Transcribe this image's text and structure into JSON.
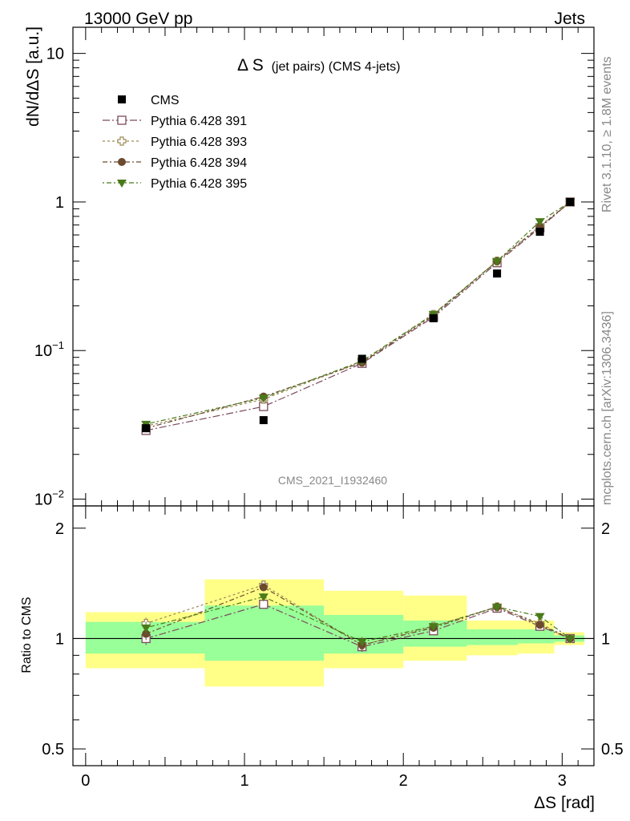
{
  "header": {
    "left": "13000 GeV pp",
    "right": "Jets"
  },
  "side_text": {
    "rivet": "Rivet 3.1.10, ≥ 1.8M events",
    "mcplots": "mcplots.cern.ch [arXiv:1306.3436]"
  },
  "colors": {
    "cms": "#000000",
    "p391": "#7b4a5c",
    "p393": "#9c8a56",
    "p394": "#6b4a2e",
    "p395": "#4a7a1a",
    "band_inner": "#99ff99",
    "band_outer": "#ffff88"
  },
  "chart_data": [
    {
      "type": "line",
      "title_main": "Δ S",
      "title_sub": "(jet pairs) (CMS 4-jets)",
      "analysis_id": "CMS_2021_I1932460",
      "ylabel": "dN/dΔS [a.u.]",
      "yscale": "log",
      "ylim": [
        0.009,
        15
      ],
      "xlim": [
        -0.08,
        3.2
      ],
      "yticks": [
        {
          "value": 0.01,
          "base": "10",
          "exp": "−2"
        },
        {
          "value": 0.1,
          "base": "10",
          "exp": "−1"
        },
        {
          "value": 1,
          "base": "1",
          "exp": ""
        },
        {
          "value": 10,
          "base": "10",
          "exp": ""
        }
      ],
      "legend_position": "top-left",
      "x": [
        0.38,
        1.12,
        1.74,
        2.19,
        2.59,
        2.86,
        3.05
      ],
      "series": [
        {
          "name": "CMS",
          "key": "cms",
          "marker": "square-filled",
          "values": [
            0.03,
            0.034,
            0.088,
            0.165,
            0.33,
            0.63,
            1.0
          ]
        },
        {
          "name": "Pythia 6.428 391",
          "key": "p391",
          "marker": "square-open",
          "values": [
            0.029,
            0.042,
            0.082,
            0.168,
            0.39,
            0.67,
            1.0
          ]
        },
        {
          "name": "Pythia 6.428 393",
          "key": "p393",
          "marker": "cross-open",
          "values": [
            0.031,
            0.047,
            0.084,
            0.175,
            0.4,
            0.69,
            1.0
          ]
        },
        {
          "name": "Pythia 6.428 394",
          "key": "p394",
          "marker": "circle-filled",
          "values": [
            0.03,
            0.049,
            0.083,
            0.172,
            0.4,
            0.68,
            1.0
          ]
        },
        {
          "name": "Pythia 6.428 395",
          "key": "p395",
          "marker": "triangle-down-filled",
          "values": [
            0.032,
            0.048,
            0.085,
            0.176,
            0.4,
            0.74,
            1.0
          ]
        }
      ]
    },
    {
      "type": "line",
      "ylabel": "Ratio to CMS",
      "xlabel": "ΔS [rad]",
      "ylim": [
        0.45,
        2.3
      ],
      "yticks": [
        0.5,
        1,
        2
      ],
      "xticks": [
        0,
        1,
        2,
        3
      ],
      "bins": [
        {
          "lo": 0.0,
          "hi": 0.75,
          "inner": [
            0.91,
            1.11
          ],
          "outer": [
            0.83,
            1.18
          ]
        },
        {
          "lo": 0.75,
          "hi": 1.5,
          "inner": [
            0.87,
            1.23
          ],
          "outer": [
            0.74,
            1.45
          ]
        },
        {
          "lo": 1.5,
          "hi": 2.0,
          "inner": [
            0.91,
            1.16
          ],
          "outer": [
            0.83,
            1.35
          ]
        },
        {
          "lo": 2.0,
          "hi": 2.4,
          "inner": [
            0.95,
            1.12
          ],
          "outer": [
            0.87,
            1.31
          ]
        },
        {
          "lo": 2.4,
          "hi": 2.72,
          "inner": [
            0.96,
            1.06
          ],
          "outer": [
            0.9,
            1.12
          ]
        },
        {
          "lo": 2.72,
          "hi": 2.95,
          "inner": [
            0.97,
            1.06
          ],
          "outer": [
            0.91,
            1.12
          ]
        },
        {
          "lo": 2.95,
          "hi": 3.14,
          "inner": [
            0.98,
            1.02
          ],
          "outer": [
            0.96,
            1.04
          ]
        }
      ],
      "x": [
        0.38,
        1.12,
        1.74,
        2.19,
        2.59,
        2.86,
        3.05
      ],
      "series": [
        {
          "name": "Pythia 6.428 391",
          "key": "p391",
          "marker": "square-open",
          "values": [
            1.0,
            1.24,
            0.95,
            1.05,
            1.21,
            1.08,
            1.0
          ],
          "err": [
            0.04,
            0.03,
            0.03,
            0.02,
            0.02,
            0.02,
            0.0
          ]
        },
        {
          "name": "Pythia 6.428 393",
          "key": "p393",
          "marker": "cross-open",
          "values": [
            1.1,
            1.4,
            0.96,
            1.08,
            1.22,
            1.1,
            1.0
          ],
          "err": [
            0.04,
            0.03,
            0.03,
            0.02,
            0.02,
            0.02,
            0.0
          ]
        },
        {
          "name": "Pythia 6.428 394",
          "key": "p394",
          "marker": "circle-filled",
          "values": [
            1.03,
            1.38,
            0.96,
            1.07,
            1.22,
            1.09,
            1.0
          ],
          "err": [
            0.04,
            0.03,
            0.03,
            0.02,
            0.02,
            0.02,
            0.0
          ]
        },
        {
          "name": "Pythia 6.428 395",
          "key": "p395",
          "marker": "triangle-down-filled",
          "values": [
            1.07,
            1.3,
            0.98,
            1.08,
            1.22,
            1.15,
            1.0
          ],
          "err": [
            0.04,
            0.03,
            0.03,
            0.02,
            0.02,
            0.02,
            0.0
          ]
        }
      ]
    }
  ]
}
